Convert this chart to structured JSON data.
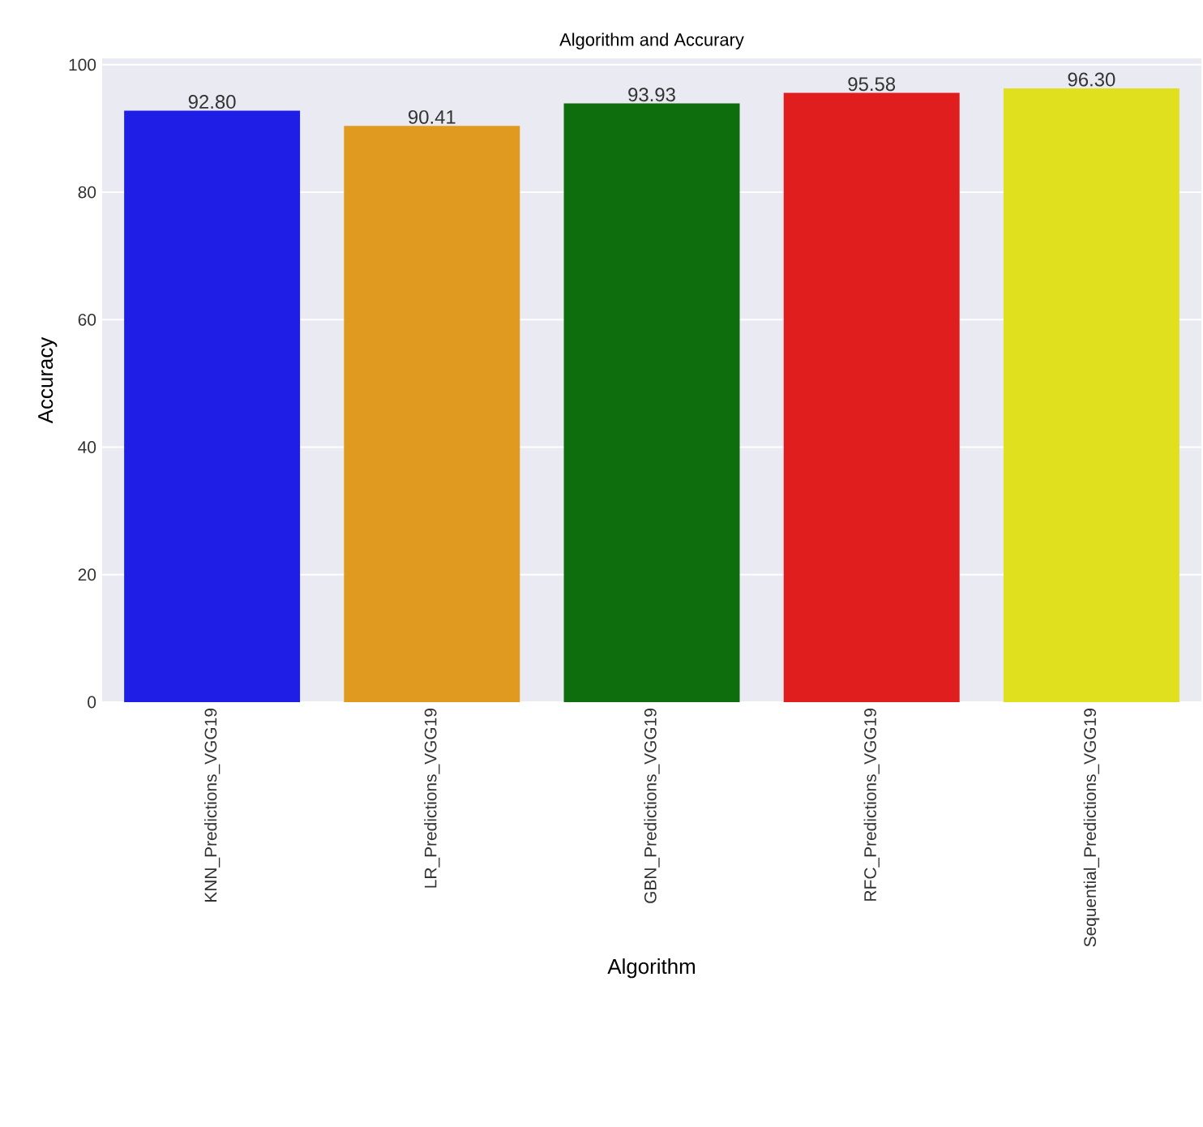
{
  "chart_data": {
    "type": "bar",
    "title": "Algorithm and Accurary",
    "xlabel": "Algorithm",
    "ylabel": "Accuracy",
    "categories": [
      "KNN_Predictions_VGG19",
      "LR_Predictions_VGG19",
      "GBN_Predictions_VGG19",
      "RFC_Predictions_VGG19",
      "Sequential_Predictions_VGG19"
    ],
    "values": [
      92.8,
      90.41,
      93.93,
      95.58,
      96.3
    ],
    "value_labels": [
      "92.80",
      "90.41",
      "93.93",
      "95.58",
      "96.30"
    ],
    "colors": [
      "#1e1ee6",
      "#e09a20",
      "#0e6e0e",
      "#e01e1e",
      "#e0e01e"
    ],
    "ylim": [
      0,
      101
    ],
    "yticks": [
      0,
      20,
      40,
      60,
      80,
      100
    ],
    "grid": "y"
  }
}
